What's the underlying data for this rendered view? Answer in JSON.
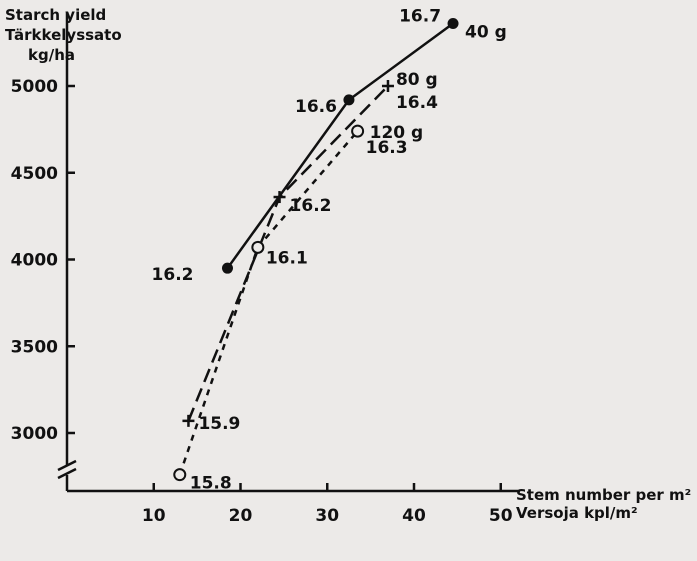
{
  "chart_data": {
    "type": "line",
    "ylabel": [
      "Starch yield",
      "Tärkkelyssato",
      "kg/ha"
    ],
    "xlabel": [
      "Stem number per m²",
      "Versoja kpl/m²"
    ],
    "xlim": [
      0,
      60
    ],
    "ylim": [
      2400,
      5400
    ],
    "x_ticks": [
      10,
      20,
      30,
      40,
      50
    ],
    "y_ticks": [
      3000,
      3500,
      4000,
      4500,
      5000
    ],
    "series": [
      {
        "name": "40 g",
        "marker": "filled-circle",
        "line_style": "solid",
        "points": [
          {
            "x": 18.5,
            "y": 3950,
            "label": "16.2"
          },
          {
            "x": 32.5,
            "y": 4920,
            "label": "16.6"
          },
          {
            "x": 44.5,
            "y": 5360,
            "label": "16.7"
          }
        ]
      },
      {
        "name": "80 g",
        "marker": "cross",
        "line_style": "dashed",
        "points": [
          {
            "x": 14,
            "y": 3070,
            "label": "15.9"
          },
          {
            "x": 24.5,
            "y": 4360,
            "label": "16.2"
          },
          {
            "x": 37,
            "y": 5000,
            "label": "16.4"
          }
        ]
      },
      {
        "name": "120 g",
        "marker": "open-circle",
        "line_style": "dotted",
        "points": [
          {
            "x": 13,
            "y": 2760,
            "label": "15.8"
          },
          {
            "x": 22,
            "y": 4070,
            "label": "16.1"
          },
          {
            "x": 33.5,
            "y": 4740,
            "label": "16.3"
          }
        ]
      }
    ]
  }
}
